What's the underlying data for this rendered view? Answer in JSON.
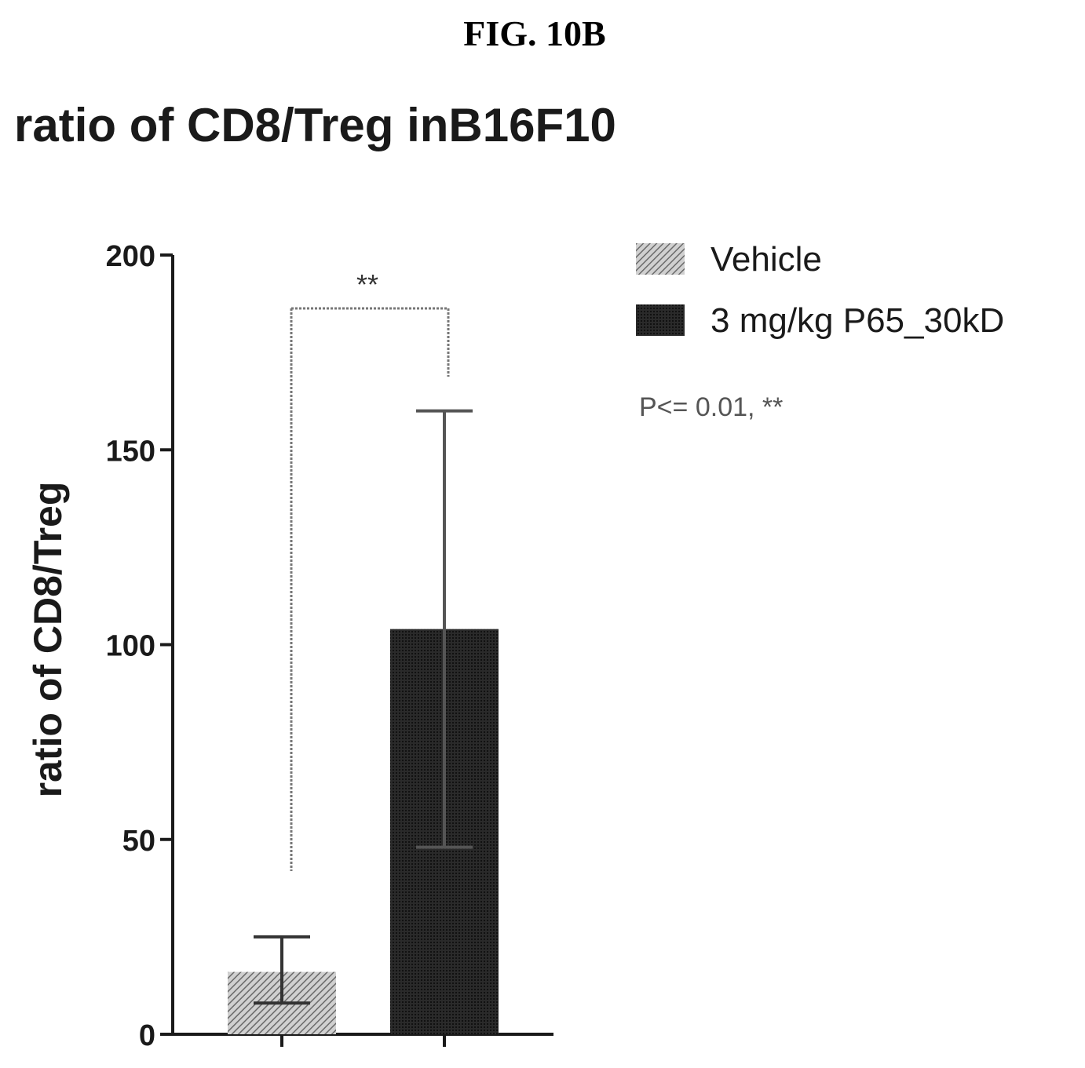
{
  "figure_label": "FIG. 10B",
  "colors": {
    "vehicle_fill": "#8a8a8a",
    "treatment_fill": "#222222",
    "axis": "#1a1a1a",
    "bracket": "#777777"
  },
  "chart_data": {
    "type": "bar",
    "title": "ratio of CD8/Treg inB16F10",
    "xlabel": "",
    "ylabel": "ratio of CD8/Treg",
    "ylim": [
      0,
      200
    ],
    "yticks": [
      "0",
      "50",
      "100",
      "150",
      "200"
    ],
    "categories": [
      "Vehicle",
      "3 mg/kg P65_30kD"
    ],
    "values": [
      16,
      104
    ],
    "error_upper": [
      25,
      160
    ],
    "error_lower": [
      8,
      48
    ],
    "legend": {
      "placement": "top-right",
      "entries": [
        "Vehicle",
        "3 mg/kg P65_30kD"
      ]
    },
    "significance": {
      "label": "**",
      "between": [
        0,
        1
      ]
    },
    "note": "P<= 0.01, **",
    "grid": false
  }
}
